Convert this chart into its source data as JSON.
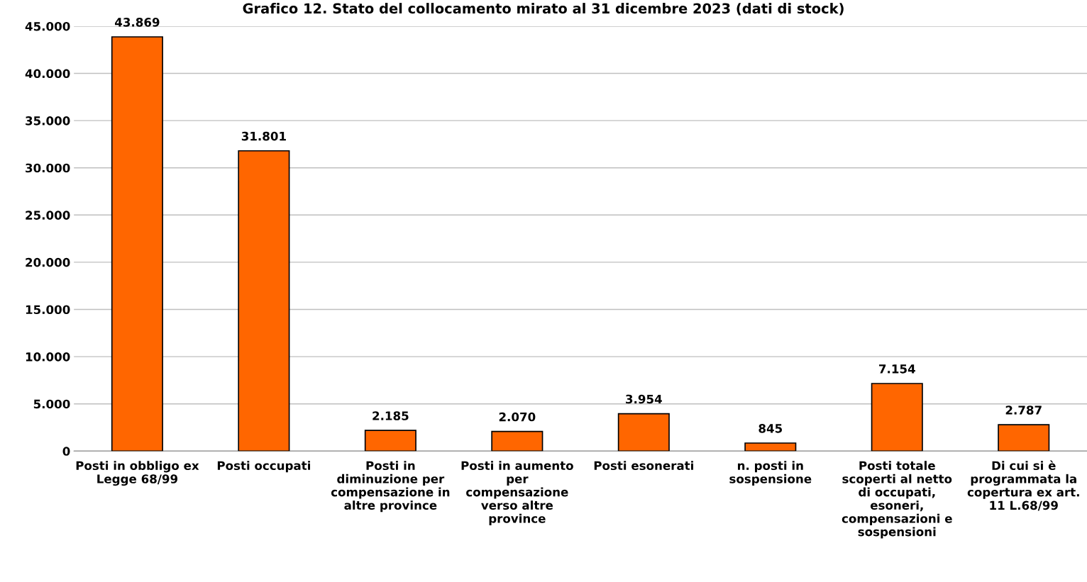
{
  "chart_data": {
    "type": "bar",
    "title": "Grafico 12. Stato del collocamento mirato al 31 dicembre 2023 (dati di stock)",
    "categories": [
      "Posti in obbligo ex\nLegge 68/99",
      "Posti occupati",
      "Posti in\ndiminuzione per\ncompensazione in\naltre province",
      "Posti in aumento\nper\ncompensazione\nverso altre\nprovince",
      "Posti esonerati",
      "n. posti in\nsospensione",
      "Posti totale\nscoperti al netto\ndi occupati,\nesoneri,\ncompensazioni e\nsospensioni",
      "Di cui si è\nprogrammata la\ncopertura ex art.\n11 L.68/99"
    ],
    "values": [
      43869,
      31801,
      2185,
      2070,
      3954,
      845,
      7154,
      2787
    ],
    "value_labels": [
      "43.869",
      "31.801",
      "2.185",
      "2.070",
      "3.954",
      "845",
      "7.154",
      "2.787"
    ],
    "color": "#ff6600",
    "ylim": [
      0,
      45000
    ],
    "yticks": [
      0,
      {
        "value": 5000,
        "label": "5.000"
      },
      {
        "value": 10000,
        "label": "10.000"
      },
      {
        "value": 15000,
        "label": "15.000"
      },
      {
        "value": 20000,
        "label": "20.000"
      },
      {
        "value": 25000,
        "label": "25.000"
      },
      {
        "value": 30000,
        "label": "30.000"
      },
      {
        "value": 35000,
        "label": "35.000"
      },
      {
        "value": 40000,
        "label": "40.000"
      },
      {
        "value": 45000,
        "label": "45.000"
      }
    ],
    "grid": "y",
    "legend": false
  }
}
